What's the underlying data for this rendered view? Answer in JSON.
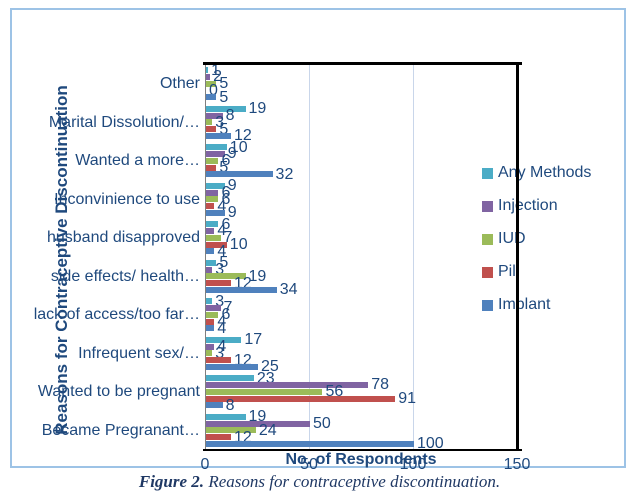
{
  "figure": {
    "caption_prefix": "Figure 2.",
    "caption_text": " Reasons for contraceptive discontinuation."
  },
  "chart_data": {
    "type": "bar",
    "orientation": "horizontal",
    "title": "",
    "xlabel": "No. of Respondents",
    "ylabel": "Reasons for Contraceptive Discontinuation",
    "xlim": [
      0,
      150
    ],
    "xticks": [
      0,
      50,
      100,
      150
    ],
    "grid": true,
    "legend_position": "right",
    "categories": [
      "Other",
      "Marital Dissolution/…",
      "Wanted a more…",
      "Inconvinience to use",
      "husband disapproved",
      "side effects/ health…",
      "lack of access/too far…",
      "Infrequent sex/…",
      "Wanted to be pregnant",
      "Became Pregranant…"
    ],
    "series": [
      {
        "name": "Any Methods",
        "color": "#4BACC6",
        "values": [
          1,
          19,
          10,
          9,
          6,
          5,
          3,
          17,
          23,
          19
        ]
      },
      {
        "name": "Injection",
        "color": "#8064A2",
        "values": [
          2,
          8,
          9,
          6,
          4,
          3,
          7,
          4,
          78,
          50
        ]
      },
      {
        "name": "IUD",
        "color": "#9BBB59",
        "values": [
          5,
          3,
          6,
          6,
          7,
          19,
          6,
          3,
          56,
          24
        ]
      },
      {
        "name": "Pill",
        "color": "#C0504D",
        "values": [
          0,
          5,
          5,
          4,
          10,
          12,
          4,
          12,
          91,
          12
        ]
      },
      {
        "name": "Implant",
        "color": "#4F81BD",
        "values": [
          5,
          12,
          32,
          9,
          4,
          34,
          4,
          25,
          8,
          100
        ]
      }
    ],
    "colors": {
      "text": "#1F497D",
      "gridline": "#C9D6EA",
      "frame": "#9DC3E6",
      "axis": "#000000"
    }
  }
}
